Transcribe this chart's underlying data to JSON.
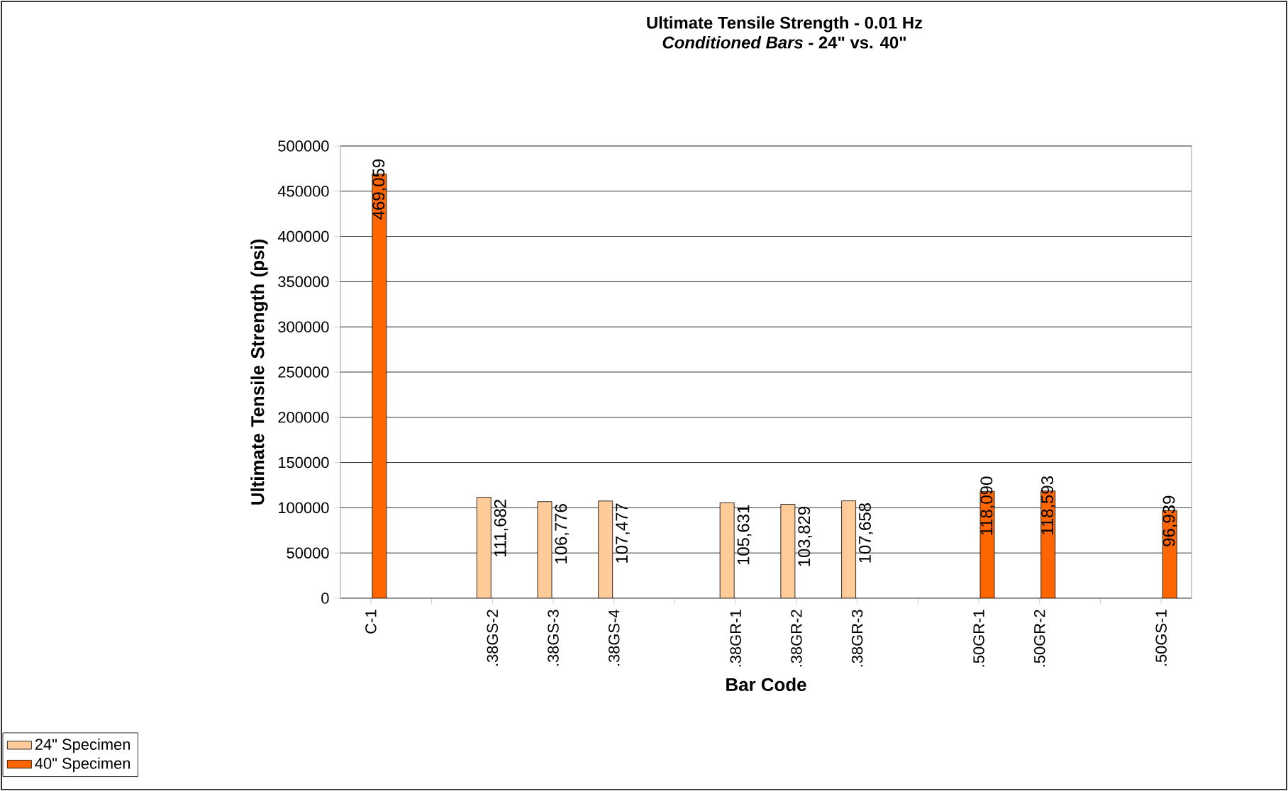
{
  "chart_data": {
    "type": "bar",
    "title": "Ultimate Tensile Strength - 0.01 Hz",
    "subtitle": "*Conditioned  Bars* - 24\" vs. 40\"",
    "xlabel": "Bar Code",
    "ylabel": "Ultimate Tensile Strength (psi)",
    "categories": [
      "C-1",
      null,
      ".38GS-2",
      ".38GS-3",
      ".38GS-4",
      null,
      ".38GR-1",
      ".38GR-2",
      ".38GR-3",
      null,
      ".50GR-1",
      ".50GR-2",
      null,
      ".50GS-1"
    ],
    "series": [
      {
        "name": "24\" Specimen",
        "color": "#ffcc99",
        "values": [
          null,
          null,
          111682,
          106776,
          107477,
          null,
          105631,
          103829,
          107658,
          null,
          null,
          null,
          null,
          null
        ],
        "value_labels": [
          null,
          null,
          "111,682",
          "106,776",
          "107,477",
          null,
          "105,631",
          "103,829",
          "107,658",
          null,
          null,
          null,
          null,
          null
        ]
      },
      {
        "name": "40\" Specimen",
        "color": "#ff6600",
        "values": [
          469059,
          null,
          null,
          null,
          null,
          null,
          null,
          null,
          null,
          null,
          118090,
          118593,
          null,
          96939
        ],
        "value_labels": [
          "469,059",
          null,
          null,
          null,
          null,
          null,
          null,
          null,
          null,
          null,
          "118,090",
          "118,593",
          null,
          "96,939"
        ]
      }
    ],
    "ylim": [
      0,
      500000
    ],
    "yticks": [
      0,
      50000,
      100000,
      150000,
      200000,
      250000,
      300000,
      350000,
      400000,
      450000,
      500000
    ],
    "grid": "y",
    "legend": "bottom left"
  }
}
